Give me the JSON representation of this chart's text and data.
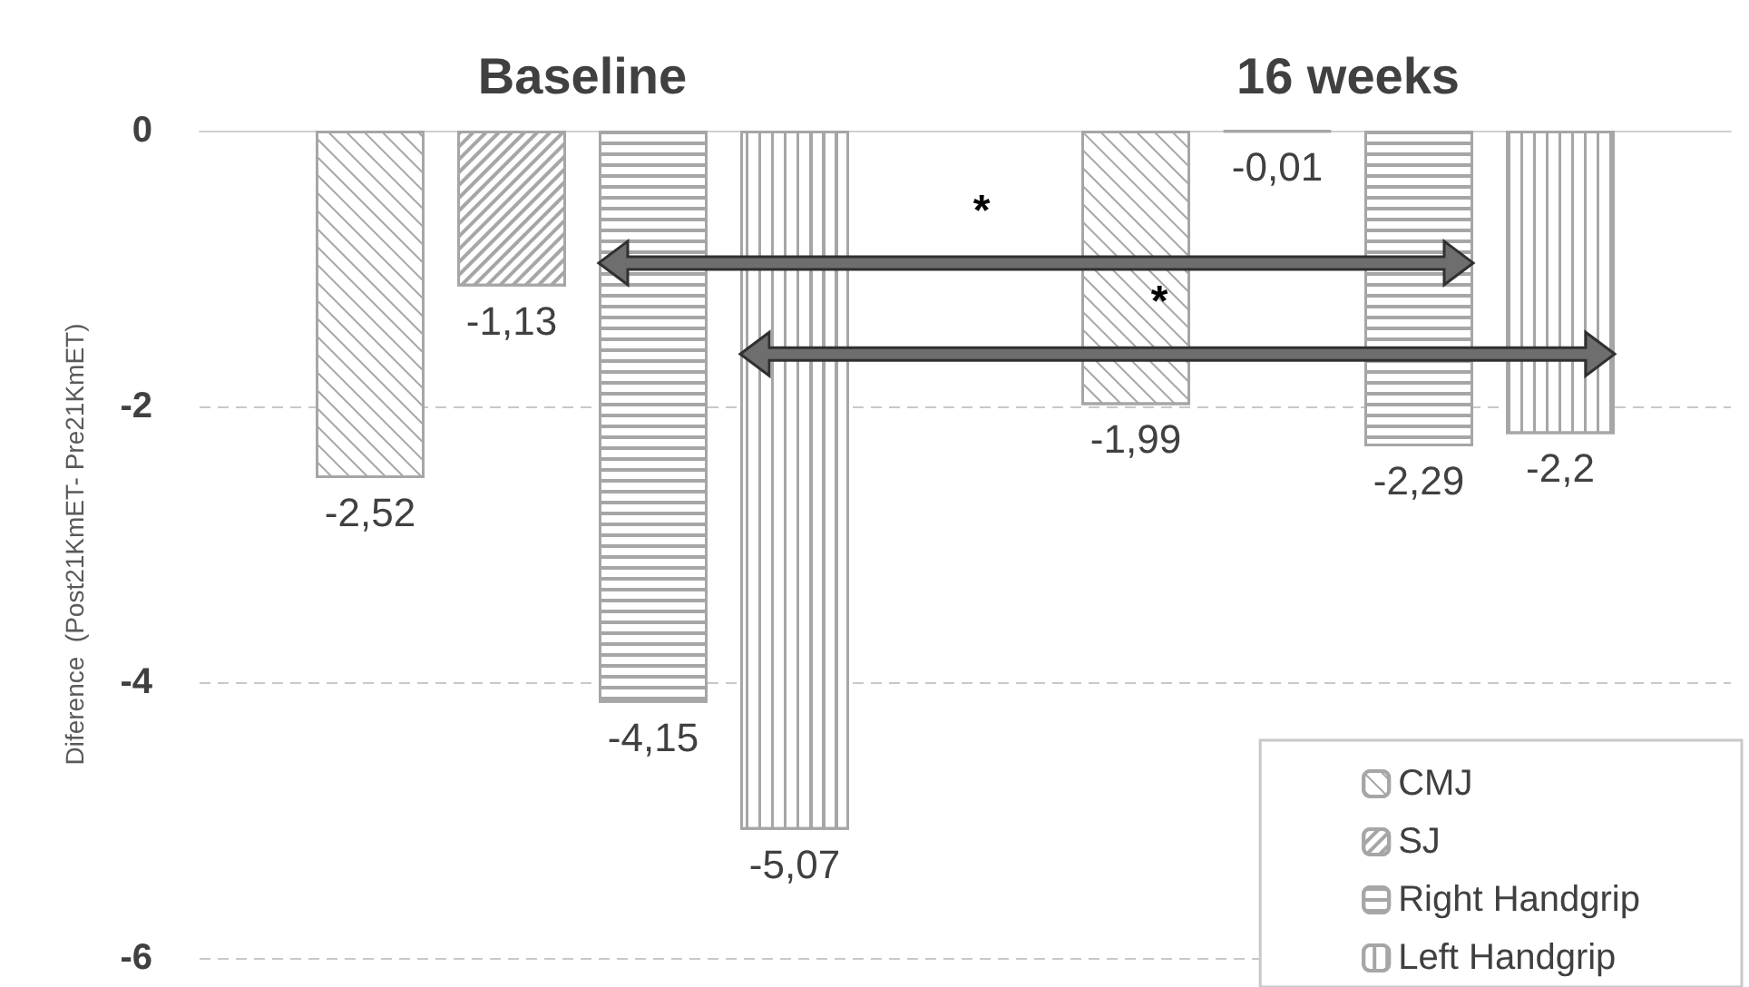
{
  "chart_data": {
    "type": "bar",
    "categories": [
      "Baseline",
      "16 weeks"
    ],
    "ylabel": "Diference  (Post21KmET- Pre21KmET)",
    "ylim": [
      -6,
      0
    ],
    "yticks": [
      0,
      -2,
      -4,
      -6
    ],
    "grid": "y",
    "legend": "bottom right",
    "annotations": [
      "*",
      "*"
    ],
    "series": [
      {
        "name": "CMJ",
        "color": "#a6a6a6",
        "values": [
          -2.52,
          -1.99
        ],
        "value_labels": [
          "-2,52",
          "-1,99"
        ]
      },
      {
        "name": "SJ",
        "color": "#a6a6a6",
        "values": [
          -1.13,
          -0.01
        ],
        "value_labels": [
          "-1,13",
          "-0,01"
        ]
      },
      {
        "name": "Right Handgrip",
        "color": "#a6a6a6",
        "values": [
          -4.15,
          -2.29
        ],
        "value_labels": [
          "-4,15",
          "-2,29"
        ]
      },
      {
        "name": "Left Handgrip",
        "color": "#a6a6a6",
        "values": [
          -5.07,
          -2.2
        ],
        "value_labels": [
          "-5,07",
          "-2,2"
        ]
      }
    ]
  }
}
